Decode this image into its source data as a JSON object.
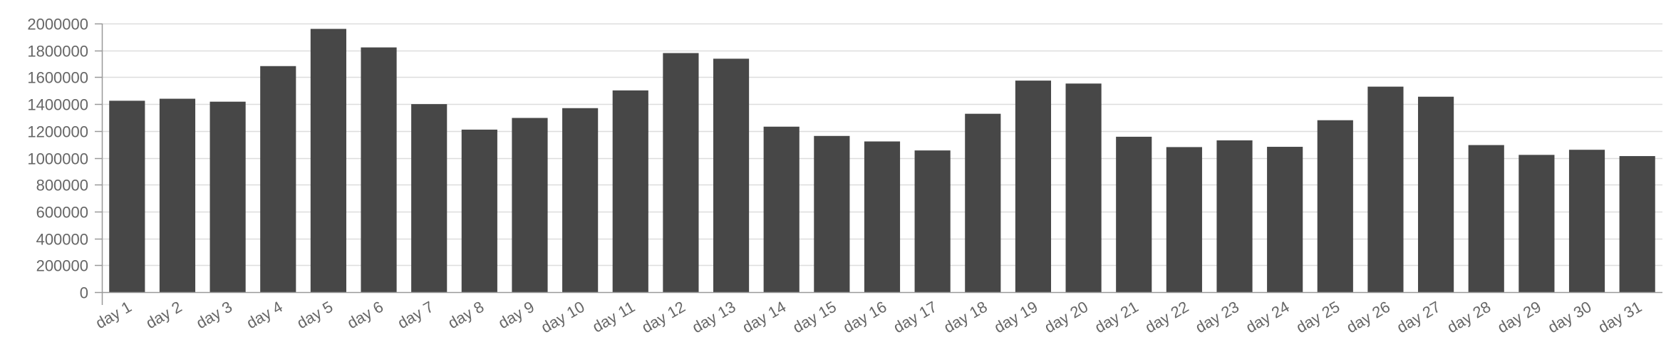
{
  "chart_data": {
    "type": "bar",
    "title": "",
    "xlabel": "",
    "ylabel": "",
    "categories": [
      "day 1",
      "day 2",
      "day 3",
      "day 4",
      "day 5",
      "day 6",
      "day 7",
      "day 8",
      "day 9",
      "day 10",
      "day 11",
      "day 12",
      "day 13",
      "day 14",
      "day 15",
      "day 16",
      "day 17",
      "day 18",
      "day 19",
      "day 20",
      "day 21",
      "day 22",
      "day 23",
      "day 24",
      "day 25",
      "day 26",
      "day 27",
      "day 28",
      "day 29",
      "day 30",
      "day 31"
    ],
    "values": [
      1425000,
      1440000,
      1418000,
      1683000,
      1960000,
      1822000,
      1400000,
      1210000,
      1297000,
      1370000,
      1502000,
      1780000,
      1738000,
      1232000,
      1163000,
      1122000,
      1055000,
      1328000,
      1575000,
      1553000,
      1157000,
      1080000,
      1130000,
      1082000,
      1280000,
      1530000,
      1455000,
      1095000,
      1022000,
      1060000,
      1013000
    ],
    "ylim": [
      0,
      2000000
    ],
    "yticks": [
      0,
      200000,
      400000,
      600000,
      800000,
      1000000,
      1200000,
      1400000,
      1600000,
      1800000,
      2000000
    ],
    "ytick_labels": [
      "0",
      "200000",
      "400000",
      "600000",
      "800000",
      "1000000",
      "1200000",
      "1400000",
      "1600000",
      "1800000",
      "2000000"
    ],
    "grid": true,
    "legend": "none",
    "bar_color": "#474747",
    "grid_color": "#dddddd",
    "axis_color": "#999999",
    "label_color": "#666666"
  }
}
